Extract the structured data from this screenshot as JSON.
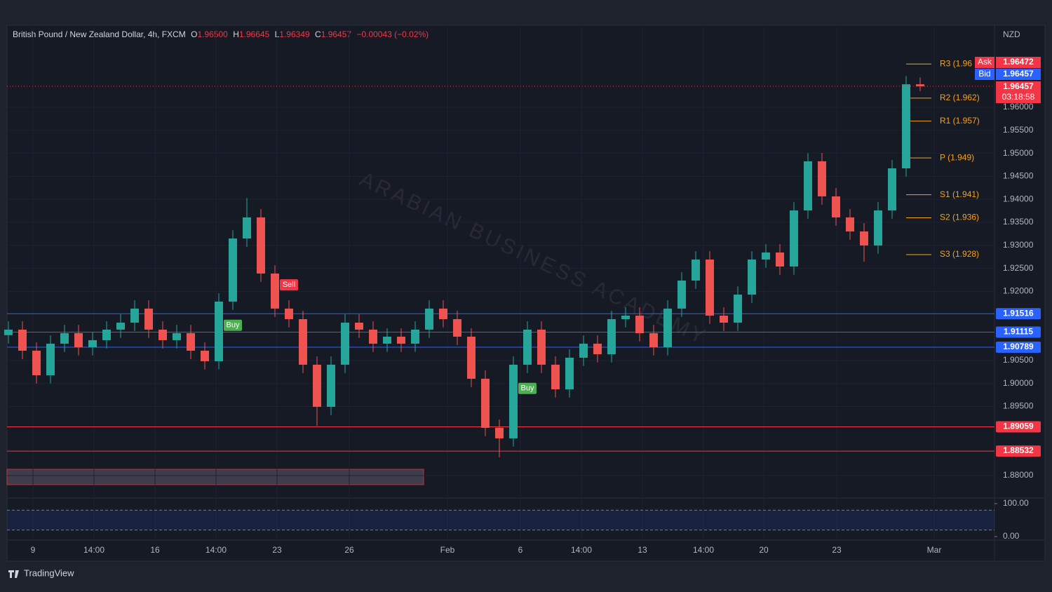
{
  "chart_data": {
    "type": "candlestick",
    "legend": {
      "title": "British Pound / New Zealand Dollar, 4h, FXCM",
      "ohlc": [
        {
          "label": "O",
          "value": "1.96500"
        },
        {
          "label": "H",
          "value": "1.96645"
        },
        {
          "label": "L",
          "value": "1.96349"
        },
        {
          "label": "C",
          "value": "1.96457"
        }
      ],
      "change": "−0.00043 (−0.02%)"
    },
    "currency": "NZD",
    "watermark": "ARABIAN BUSINESS ACADEMY",
    "brand": "TradingView",
    "up_color": "#26a69a",
    "down_color": "#ef5350",
    "xlim": [
      -0.1,
      70.3
    ],
    "ylim": [
      1.87512,
      1.97752
    ],
    "xticks": [
      {
        "value": 1.75,
        "label": "9"
      },
      {
        "value": 6.1,
        "label": "14:00"
      },
      {
        "value": 10.45,
        "label": "16"
      },
      {
        "value": 14.8,
        "label": "14:00"
      },
      {
        "value": 19.15,
        "label": "23"
      },
      {
        "value": 24.3,
        "label": "26"
      },
      {
        "value": 31.3,
        "label": "Feb"
      },
      {
        "value": 36.5,
        "label": "6"
      },
      {
        "value": 40.85,
        "label": "14:00"
      },
      {
        "value": 45.2,
        "label": "13"
      },
      {
        "value": 49.55,
        "label": "14:00"
      },
      {
        "value": 53.85,
        "label": "20"
      },
      {
        "value": 59.05,
        "label": "23"
      },
      {
        "value": 66,
        "label": "Mar"
      }
    ],
    "yticks": [
      {
        "value": 1.96,
        "label": "1.96000"
      },
      {
        "value": 1.955,
        "label": "1.95500"
      },
      {
        "value": 1.95,
        "label": "1.95000"
      },
      {
        "value": 1.945,
        "label": "1.94500"
      },
      {
        "value": 1.94,
        "label": "1.94000"
      },
      {
        "value": 1.935,
        "label": "1.93500"
      },
      {
        "value": 1.93,
        "label": "1.93000"
      },
      {
        "value": 1.925,
        "label": "1.92500"
      },
      {
        "value": 1.92,
        "label": "1.92000"
      },
      {
        "value": 1.905,
        "label": "1.90500"
      },
      {
        "value": 1.9,
        "label": "1.90000"
      },
      {
        "value": 1.895,
        "label": "1.89500"
      },
      {
        "value": 1.88,
        "label": "1.88000"
      }
    ],
    "open": [
      1.9105,
      1.9117,
      1.90712,
      1.90179,
      1.90865,
      1.91093,
      1.90789,
      1.90941,
      1.9117,
      1.91322,
      1.91627,
      1.9117,
      1.90941,
      1.91093,
      1.90712,
      1.90484,
      1.91779,
      1.9315,
      1.93608,
      1.92389,
      1.91627,
      1.91398,
      1.90408,
      1.89493,
      1.90408,
      1.91322,
      1.9117,
      1.90865,
      1.91017,
      1.90865,
      1.9117,
      1.91627,
      1.91398,
      1.91017,
      1.90103,
      1.89036,
      1.88808,
      1.90408,
      1.9117,
      1.90408,
      1.89874,
      1.9056,
      1.90865,
      1.90636,
      1.91398,
      1.91474,
      1.91093,
      1.90789,
      1.91627,
      1.92236,
      1.92693,
      1.91474,
      1.91322,
      1.91931,
      1.92693,
      1.92846,
      1.92541,
      1.9376,
      1.94827,
      1.94065,
      1.93608,
      1.93303,
      1.92998,
      1.9376,
      1.94674,
      1.965
    ],
    "high": [
      1.9135,
      1.9135,
      1.90892,
      1.91045,
      1.91273,
      1.91273,
      1.91121,
      1.9135,
      1.91502,
      1.91807,
      1.91807,
      1.9135,
      1.91273,
      1.91273,
      1.90892,
      1.91959,
      1.9333,
      1.9403,
      1.93788,
      1.92569,
      1.91807,
      1.91578,
      1.90588,
      1.90588,
      1.91502,
      1.91502,
      1.9135,
      1.91197,
      1.91197,
      1.9135,
      1.91807,
      1.91807,
      1.91578,
      1.91197,
      1.90283,
      1.89216,
      1.90588,
      1.9135,
      1.9135,
      1.90588,
      1.9074,
      1.91045,
      1.91045,
      1.91578,
      1.91654,
      1.91654,
      1.91273,
      1.91807,
      1.92416,
      1.92873,
      1.92873,
      1.91654,
      1.92111,
      1.92873,
      1.93026,
      1.93026,
      1.9394,
      1.95007,
      1.95007,
      1.94245,
      1.93788,
      1.93483,
      1.9394,
      1.94854,
      1.9668,
      1.96645
    ],
    "low": [
      1.9087,
      1.90532,
      1.89999,
      1.89999,
      1.90685,
      1.90609,
      1.90609,
      1.90761,
      1.9099,
      1.91142,
      1.9099,
      1.90761,
      1.90761,
      1.90532,
      1.90304,
      1.90304,
      1.91599,
      1.9297,
      1.92209,
      1.91447,
      1.91218,
      1.90228,
      1.8908,
      1.89313,
      1.90228,
      1.9099,
      1.90685,
      1.90685,
      1.90685,
      1.90685,
      1.9099,
      1.91218,
      1.90837,
      1.89923,
      1.88856,
      1.884,
      1.88628,
      1.90228,
      1.90228,
      1.89694,
      1.89694,
      1.9038,
      1.90456,
      1.90456,
      1.91218,
      1.90913,
      1.90609,
      1.90609,
      1.91447,
      1.92056,
      1.91294,
      1.91142,
      1.91142,
      1.91751,
      1.92513,
      1.92361,
      1.92361,
      1.9358,
      1.93885,
      1.93428,
      1.93123,
      1.9265,
      1.92818,
      1.9358,
      1.94494,
      1.96349
    ],
    "close": [
      1.9117,
      1.90712,
      1.90179,
      1.90865,
      1.91093,
      1.90789,
      1.90941,
      1.9117,
      1.91322,
      1.91627,
      1.9117,
      1.90941,
      1.91093,
      1.90712,
      1.90484,
      1.91779,
      1.9315,
      1.93608,
      1.92389,
      1.91627,
      1.91398,
      1.90408,
      1.89493,
      1.90408,
      1.91322,
      1.9117,
      1.90865,
      1.91017,
      1.90865,
      1.9117,
      1.91627,
      1.91398,
      1.91017,
      1.90103,
      1.89036,
      1.88808,
      1.90408,
      1.9117,
      1.90408,
      1.89874,
      1.9056,
      1.90865,
      1.90636,
      1.91398,
      1.91474,
      1.91093,
      1.90789,
      1.91627,
      1.92236,
      1.92693,
      1.91474,
      1.91322,
      1.91931,
      1.92693,
      1.92846,
      1.92541,
      1.9376,
      1.94827,
      1.94065,
      1.93608,
      1.93303,
      1.92998,
      1.9376,
      1.94674,
      1.965,
      1.96457
    ],
    "levels": [
      {
        "value": 1.91516,
        "color": "#2962ff"
      },
      {
        "value": 1.91115,
        "color": "#2962ff"
      },
      {
        "value": 1.90789,
        "color": "#2962ff"
      },
      {
        "value": 1.89059,
        "color": "#f23645"
      },
      {
        "value": 1.88532,
        "color": "#f23645"
      }
    ],
    "pivots": {
      "color": "#f7a21b",
      "items": [
        {
          "label": "R3 (1.96",
          "value": 1.9694
        },
        {
          "label": "R2 (1.962)",
          "value": 1.962
        },
        {
          "label": "R1 (1.957)",
          "value": 1.957
        },
        {
          "label": "P (1.949)",
          "value": 1.949
        },
        {
          "label": "S1 (1.941)",
          "value": 1.941
        },
        {
          "label": "S2 (1.936)",
          "value": 1.936
        },
        {
          "label": "S3 (1.928)",
          "value": 1.928
        }
      ]
    },
    "quote": {
      "ask_label": "Ask",
      "ask": 1.96472,
      "bid_label": "Bid",
      "bid": 1.96457,
      "last": 1.96457,
      "countdown": "03:18:58"
    },
    "signals": [
      {
        "label": "Buy",
        "x": 16
      },
      {
        "label": "Sell",
        "x": 20
      },
      {
        "label": "Buy",
        "x": 37
      }
    ],
    "oscillator": {
      "ylim": [
        -10.6,
        117
      ],
      "yticks": [
        {
          "value": 100,
          "label": "100.00"
        },
        {
          "value": 0,
          "label": "0.00"
        }
      ],
      "bands": [
        80,
        20
      ]
    }
  }
}
